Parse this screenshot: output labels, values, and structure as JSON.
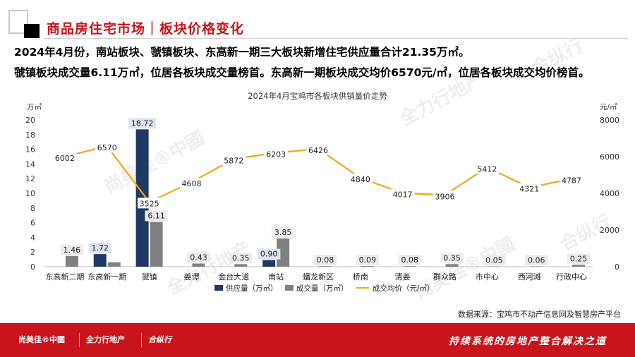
{
  "header": {
    "title": "商品房住宅市场｜板块价格变化",
    "summary_1": "2024年4月份，南站板块、虢镇板块、东高新一期三大板块新增住宅供应量合计21.35万㎡。",
    "summary_2": "虢镇板块成交量6.11万㎡，位居各板块成交量榜首。东高新一期板块成交均价6570元/㎡，位居各板块成交均价榜首。"
  },
  "source": "数据来源：宝鸡市不动产信息网及智慧房产平台",
  "footer": {
    "logo_1": "尚美佳®中國",
    "logo_2": "全力行地产",
    "logo_3": "合纵行",
    "tagline": "持续系统的房地产整合解决之道"
  },
  "watermarks": [
    "尚美佳®中國",
    "全力行地产",
    "合纵行"
  ],
  "colors": {
    "brand_red": "#c8151d",
    "supply": "#203864",
    "deal": "#808080",
    "price": "#f2a71a"
  },
  "chart_data": {
    "type": "bar",
    "title": "2024年4月宝鸡市各板块供销量价走势",
    "categories": [
      "东高新二期",
      "东高新一期",
      "虢镇",
      "姜谭",
      "金台大道",
      "南站",
      "蟠龙新区",
      "桥南",
      "清姜",
      "群众路",
      "市中心",
      "西河滩",
      "行政中心"
    ],
    "series": [
      {
        "name": "供应量（万㎡）",
        "type": "bar",
        "axis": "left",
        "values": [
          0,
          1.72,
          18.72,
          0,
          0,
          0.9,
          0,
          0,
          0,
          0,
          0,
          0,
          0
        ]
      },
      {
        "name": "成交量（万㎡）",
        "type": "bar",
        "axis": "left",
        "values": [
          1.46,
          0.6,
          6.11,
          0.43,
          0.35,
          3.85,
          0.08,
          0.09,
          0.08,
          0.35,
          0.05,
          0.06,
          0.25
        ]
      },
      {
        "name": "成交均价（元/㎡）",
        "type": "line",
        "axis": "right",
        "values": [
          6002,
          6570,
          3525,
          4608,
          5872,
          6203,
          6426,
          4840,
          4017,
          3906,
          5412,
          4321,
          4787
        ]
      }
    ],
    "data_labels": {
      "supply": [
        "",
        "1.72",
        "18.72",
        "",
        "",
        "0.90",
        "",
        "",
        "",
        "",
        "",
        "",
        ""
      ],
      "deal": [
        "1.46",
        "",
        "6.11",
        "0.43",
        "0.35",
        "3.85",
        "0.08",
        "0.09",
        "0.08",
        "0.35",
        "0.05",
        "0.06",
        "0.25"
      ],
      "price": [
        "6002",
        "6570",
        "3525",
        "4608",
        "5872",
        "6203",
        "6426",
        "4840",
        "4017",
        "3906",
        "5412",
        "4321",
        "4787"
      ]
    },
    "y_left": {
      "unit": "万㎡",
      "range": [
        0,
        20
      ],
      "ticks": [
        "0",
        "2",
        "4",
        "6",
        "8",
        "10",
        "12",
        "14",
        "16",
        "18",
        "20"
      ]
    },
    "y_right": {
      "unit": "元/㎡",
      "range": [
        0,
        8000
      ],
      "ticks": [
        "0",
        "2000",
        "4000",
        "6000",
        "8000"
      ]
    },
    "grid": false,
    "legend_position": "bottom"
  }
}
